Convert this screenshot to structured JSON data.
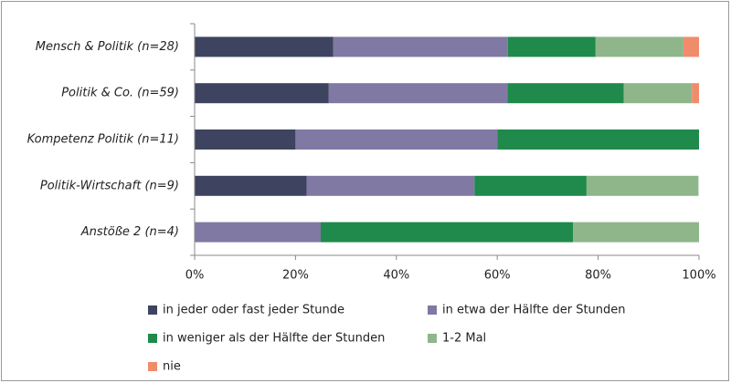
{
  "chart_data": {
    "type": "stacked_bar_horizontal",
    "categories": [
      "Mensch & Politik (n=28)",
      "Politik & Co. (n=59)",
      "Kompetenz Politik (n=11)",
      "Politik-Wirtschaft (n=9)",
      "Anstöße 2 (n=4)"
    ],
    "series": [
      {
        "name": "in jeder oder fast jeder Stunde",
        "color": "#3e445f",
        "values": [
          27.5,
          26.6,
          20,
          22.2,
          0
        ]
      },
      {
        "name": "in etwa der Hälfte der Stunden",
        "color": "#8079a3",
        "values": [
          34.6,
          35.4,
          40,
          33.3,
          25
        ]
      },
      {
        "name": "in weniger als der Hälfte der Stunden",
        "color": "#1f8a4b",
        "values": [
          17.4,
          23.1,
          40,
          22.2,
          50
        ]
      },
      {
        "name": "1-2 Mal",
        "color": "#8fb68b",
        "values": [
          17.4,
          13.5,
          0,
          22.2,
          25
        ]
      },
      {
        "name": "nie",
        "color": "#f08c6c",
        "values": [
          3.1,
          1.4,
          0,
          0,
          0
        ]
      }
    ],
    "xlim": [
      0,
      100
    ],
    "xticks": [
      {
        "value": 0,
        "label": "0%"
      },
      {
        "value": 20,
        "label": "20%"
      },
      {
        "value": 40,
        "label": "40%"
      },
      {
        "value": 60,
        "label": "60%"
      },
      {
        "value": 80,
        "label": "80%"
      },
      {
        "value": 100,
        "label": "100%"
      }
    ],
    "legend": "bottom"
  }
}
